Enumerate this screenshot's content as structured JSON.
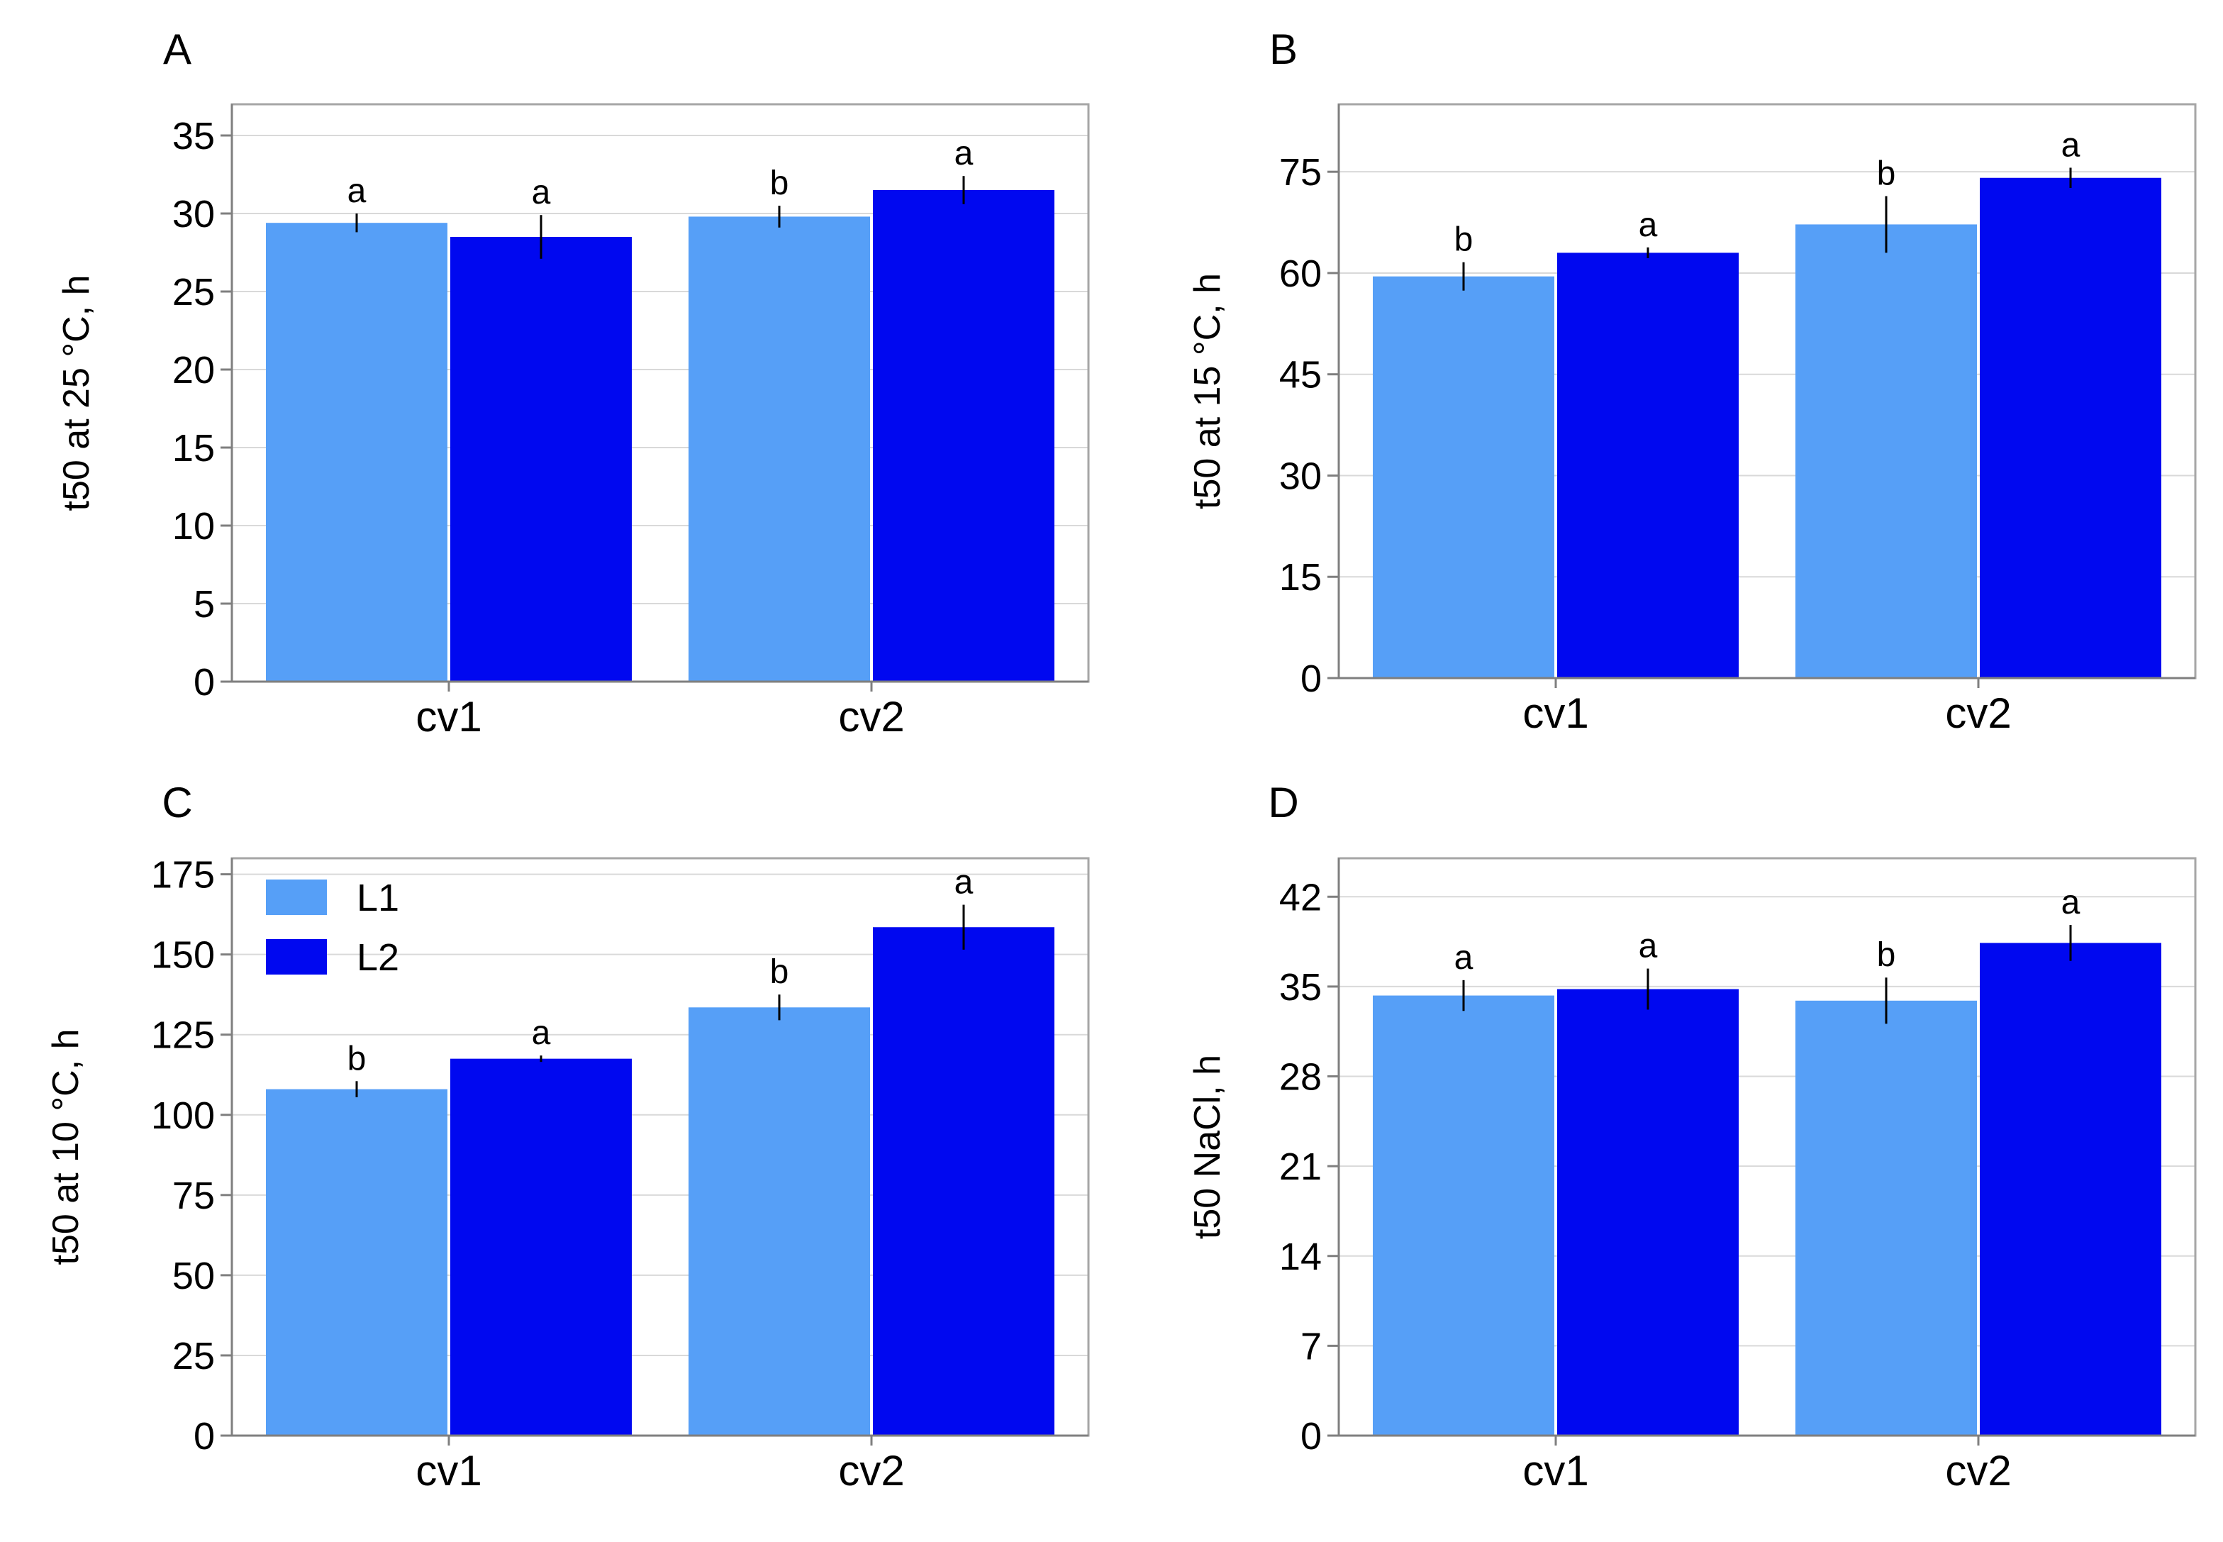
{
  "colors": {
    "L1": "#569ff7",
    "L2": "#0008f0",
    "grid": "#d9d9d9",
    "frame": "#a6a6a6",
    "axis": "#7f7f7f",
    "error": "#000000"
  },
  "legend": {
    "panel": "C",
    "position": "top-left",
    "items": [
      {
        "key": "L1",
        "label": "L1"
      },
      {
        "key": "L2",
        "label": "L2"
      }
    ]
  },
  "chart_data": [
    {
      "panel": "A",
      "type": "bar",
      "title": "",
      "ylabel": "t50 at 25 °C, h",
      "xlabel": "",
      "categories": [
        "cv1",
        "cv2"
      ],
      "ylim": [
        0,
        37
      ],
      "yticks": [
        0,
        5,
        10,
        15,
        20,
        25,
        30,
        35
      ],
      "grid": true,
      "series": [
        {
          "name": "L1",
          "values": [
            29.4,
            29.8
          ],
          "errors": [
            0.6,
            0.7
          ],
          "letters": [
            "a",
            "b"
          ]
        },
        {
          "name": "L2",
          "values": [
            28.5,
            31.5
          ],
          "errors": [
            1.4,
            0.9
          ],
          "letters": [
            "a",
            "a"
          ]
        }
      ]
    },
    {
      "panel": "B",
      "type": "bar",
      "title": "",
      "ylabel": "t50 at 15 °C, h",
      "xlabel": "",
      "categories": [
        "cv1",
        "cv2"
      ],
      "ylim": [
        0,
        85
      ],
      "yticks": [
        0,
        15,
        30,
        45,
        60,
        75
      ],
      "grid": true,
      "series": [
        {
          "name": "L1",
          "values": [
            59.5,
            67.2
          ],
          "errors": [
            2.1,
            4.2
          ],
          "letters": [
            "b",
            "b"
          ]
        },
        {
          "name": "L2",
          "values": [
            63.0,
            74.1
          ],
          "errors": [
            0.8,
            1.5
          ],
          "letters": [
            "a",
            "a"
          ]
        }
      ]
    },
    {
      "panel": "C",
      "type": "bar",
      "title": "",
      "ylabel": "t50 at 10 °C, h",
      "xlabel": "",
      "categories": [
        "cv1",
        "cv2"
      ],
      "ylim": [
        0,
        180
      ],
      "yticks": [
        0,
        25,
        50,
        75,
        100,
        125,
        150,
        175
      ],
      "grid": true,
      "series": [
        {
          "name": "L1",
          "values": [
            108,
            133.5
          ],
          "errors": [
            2.5,
            4
          ],
          "letters": [
            "b",
            "b"
          ]
        },
        {
          "name": "L2",
          "values": [
            117.5,
            158.5
          ],
          "errors": [
            1,
            7
          ],
          "letters": [
            "a",
            "a"
          ]
        }
      ]
    },
    {
      "panel": "D",
      "type": "bar",
      "title": "",
      "ylabel": "t50 NaCl, h",
      "xlabel": "",
      "categories": [
        "cv1",
        "cv2"
      ],
      "ylim": [
        0,
        45
      ],
      "yticks": [
        0,
        7,
        14,
        21,
        28,
        35,
        42
      ],
      "grid": true,
      "series": [
        {
          "name": "L1",
          "values": [
            34.3,
            33.9
          ],
          "errors": [
            1.2,
            1.8
          ],
          "letters": [
            "a",
            "b"
          ]
        },
        {
          "name": "L2",
          "values": [
            34.8,
            38.4
          ],
          "errors": [
            1.6,
            1.4
          ],
          "letters": [
            "a",
            "a"
          ]
        }
      ]
    }
  ]
}
